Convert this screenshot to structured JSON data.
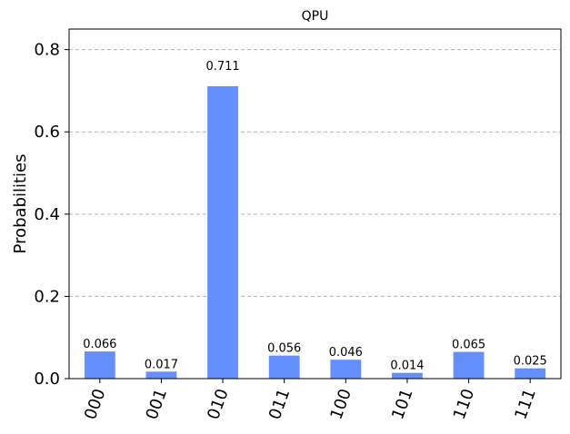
{
  "chart_data": {
    "type": "bar",
    "title": "QPU",
    "xlabel": "",
    "ylabel": "Probabilities",
    "categories": [
      "000",
      "001",
      "010",
      "011",
      "100",
      "101",
      "110",
      "111"
    ],
    "values": [
      0.066,
      0.017,
      0.711,
      0.056,
      0.046,
      0.014,
      0.065,
      0.025
    ],
    "data_labels": [
      "0.066",
      "0.017",
      "0.711",
      "0.056",
      "0.046",
      "0.014",
      "0.065",
      "0.025"
    ],
    "ylim": [
      0,
      0.85
    ],
    "yticks": [
      0.0,
      0.2,
      0.4,
      0.6,
      0.8
    ],
    "ytick_labels": [
      "0.0",
      "0.2",
      "0.4",
      "0.6",
      "0.8"
    ],
    "grid": "y-dashed",
    "bar_color": "#648fff",
    "xtick_rotation": -70
  }
}
